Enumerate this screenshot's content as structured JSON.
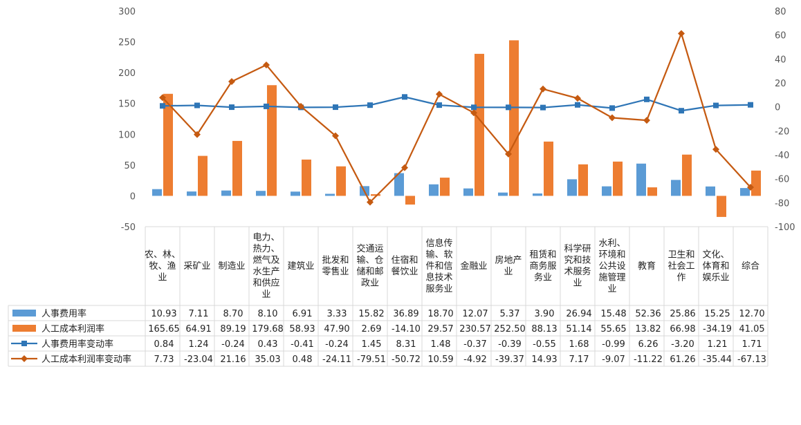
{
  "chart_data": {
    "type": "bar",
    "categories": [
      "农、林、牧、渔业",
      "采矿业",
      "制造业",
      "电力、热力、燃气及水生产和供应业",
      "建筑业",
      "批发和零售业",
      "交通运输、仓储和邮政业",
      "住宿和餐饮业",
      "信息传输、软件和信息技术服务业",
      "金融业",
      "房地产业",
      "租赁和商务服务业",
      "科学研究和技术服务业",
      "水利、环境和公共设施管理业",
      "教育",
      "卫生和社会工作",
      "文化、体育和娱乐业",
      "综合"
    ],
    "category_lines": [
      [
        "农、林、",
        "牧、渔",
        "业"
      ],
      [
        "采矿业"
      ],
      [
        "制造业"
      ],
      [
        "电力、",
        "热力、",
        "燃气及",
        "水生产",
        "和供应",
        "业"
      ],
      [
        "建筑业"
      ],
      [
        "批发和",
        "零售业"
      ],
      [
        "交通运",
        "输、仓",
        "储和邮",
        "政业"
      ],
      [
        "住宿和",
        "餐饮业"
      ],
      [
        "信息传",
        "输、软",
        "件和信",
        "息技术",
        "服务业"
      ],
      [
        "金融业"
      ],
      [
        "房地产",
        "业"
      ],
      [
        "租赁和",
        "商务服",
        "务业"
      ],
      [
        "科学研",
        "究和技",
        "术服务",
        "业"
      ],
      [
        "水利、",
        "环境和",
        "公共设",
        "施管理",
        "业"
      ],
      [
        "教育"
      ],
      [
        "卫生和",
        "社会工",
        "作"
      ],
      [
        "文化、",
        "体育和",
        "娱乐业"
      ],
      [
        "综合"
      ]
    ],
    "series": [
      {
        "name": "人事费用率",
        "kind": "bar",
        "axis": "left",
        "color": "#5b9bd5",
        "values": [
          10.93,
          7.11,
          8.7,
          8.1,
          6.91,
          3.33,
          15.82,
          36.89,
          18.7,
          12.07,
          5.37,
          3.9,
          26.94,
          15.48,
          52.36,
          25.86,
          15.25,
          12.7
        ],
        "labels": [
          "10.93",
          "7.11",
          "8.70",
          "8.10",
          "6.91",
          "3.33",
          "15.82",
          "36.89",
          "18.70",
          "12.07",
          "5.37",
          "3.90",
          "26.94",
          "15.48",
          "52.36",
          "25.86",
          "15.25",
          "12.70"
        ]
      },
      {
        "name": "人工成本利润率",
        "kind": "bar",
        "axis": "left",
        "color": "#ed7d31",
        "values": [
          165.65,
          64.91,
          89.19,
          179.68,
          58.93,
          47.9,
          2.69,
          -14.1,
          29.57,
          230.57,
          252.5,
          88.13,
          51.14,
          55.65,
          13.82,
          66.98,
          -34.19,
          41.05
        ],
        "labels": [
          "165.65",
          "64.91",
          "89.19",
          "179.68",
          "58.93",
          "47.90",
          "2.69",
          "-14.10",
          "29.57",
          "230.57",
          "252.50",
          "88.13",
          "51.14",
          "55.65",
          "13.82",
          "66.98",
          "-34.19",
          "41.05"
        ]
      },
      {
        "name": "人事费用率变动率",
        "kind": "line",
        "axis": "right",
        "color": "#2e75b6",
        "marker": "square",
        "values": [
          0.84,
          1.24,
          -0.24,
          0.43,
          -0.41,
          -0.24,
          1.45,
          8.31,
          1.48,
          -0.37,
          -0.39,
          -0.55,
          1.68,
          -0.99,
          6.26,
          -3.2,
          1.21,
          1.71
        ],
        "labels": [
          "0.84",
          "1.24",
          "-0.24",
          "0.43",
          "-0.41",
          "-0.24",
          "1.45",
          "8.31",
          "1.48",
          "-0.37",
          "-0.39",
          "-0.55",
          "1.68",
          "-0.99",
          "6.26",
          "-3.20",
          "1.21",
          "1.71"
        ]
      },
      {
        "name": "人工成本利润率变动率",
        "kind": "line",
        "axis": "right",
        "color": "#c55a11",
        "marker": "diamond",
        "values": [
          7.73,
          -23.04,
          21.16,
          35.03,
          0.48,
          -24.11,
          -79.51,
          -50.72,
          10.59,
          -4.92,
          -39.37,
          14.93,
          7.17,
          -9.07,
          -11.22,
          61.26,
          -35.44,
          -67.13
        ],
        "labels": [
          "7.73",
          "-23.04",
          "21.16",
          "35.03",
          "0.48",
          "-24.11",
          "-79.51",
          "-50.72",
          "10.59",
          "-4.92",
          "-39.37",
          "14.93",
          "7.17",
          "-9.07",
          "-11.22",
          "61.26",
          "-35.44",
          "-67.13"
        ]
      }
    ],
    "left_axis": {
      "min": -50,
      "max": 300,
      "ticks": [
        300,
        250,
        200,
        150,
        100,
        50,
        0,
        -50
      ]
    },
    "right_axis": {
      "min": -100,
      "max": 80,
      "ticks": [
        80,
        60,
        40,
        20,
        0,
        -20,
        -40,
        -60,
        -80,
        -100
      ]
    },
    "legend": "data-table"
  }
}
